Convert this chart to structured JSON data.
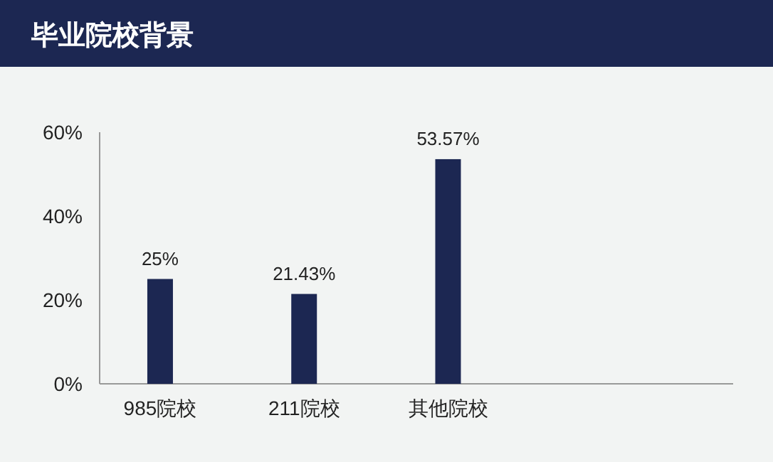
{
  "chart_data": {
    "type": "bar",
    "title": "毕业院校背景",
    "categories": [
      "985院校",
      "211院校",
      "其他院校"
    ],
    "values": [
      25,
      21.43,
      53.57
    ],
    "value_labels": [
      "25%",
      "21.43%",
      "53.57%"
    ],
    "color": "#1c2752",
    "ylim": [
      0,
      60
    ],
    "yticks": [
      {
        "value": 0,
        "label": "0%"
      },
      {
        "value": 20,
        "label": "20%"
      },
      {
        "value": 40,
        "label": "40%"
      },
      {
        "value": 60,
        "label": "60%"
      }
    ],
    "grid": false
  }
}
